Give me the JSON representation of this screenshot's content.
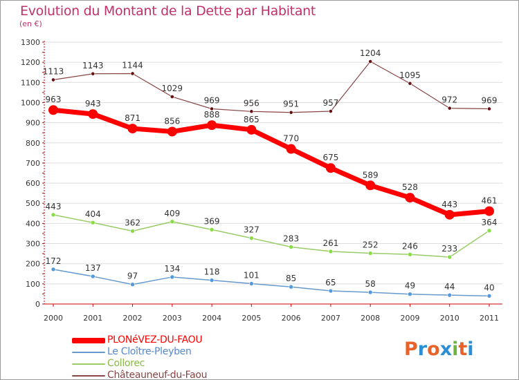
{
  "header": {
    "title": "Evolution du Montant de la Dette par Habitant",
    "subtitle": "(en €)"
  },
  "brand": {
    "text": "Proxiti",
    "letters": [
      "P",
      "r",
      "o",
      "x",
      "i",
      "t",
      "i"
    ],
    "colors": [
      "#e8622a",
      "#2b8fd6",
      "#e8622a",
      "#2b8fd6",
      "#6db33f",
      "#e8622a",
      "#2b8fd6"
    ]
  },
  "colors": {
    "title": "#c1306a",
    "axis": "#cc0000",
    "grid": "#dddddd",
    "label": "#333333"
  },
  "chart_data": {
    "type": "line",
    "title": "Evolution du Montant de la Dette par Habitant",
    "subtitle": "(en €)",
    "x": [
      "2000",
      "2001",
      "2002",
      "2003",
      "2004",
      "2005",
      "2006",
      "2007",
      "2008",
      "2009",
      "2010",
      "2011"
    ],
    "ylim": [
      0,
      1300
    ],
    "yticks": [
      0,
      100,
      200,
      300,
      400,
      500,
      600,
      700,
      800,
      900,
      1000,
      1100,
      1200,
      1300
    ],
    "grid": "horizontal",
    "legend_position": "bottom-left",
    "series": [
      {
        "name": "PLONéVEZ-DU-FAOU",
        "color": "#ff0000",
        "dot": "#ff0000",
        "width": 7,
        "values": [
          963,
          943,
          871,
          856,
          888,
          865,
          770,
          675,
          589,
          528,
          443,
          461
        ]
      },
      {
        "name": "Le Cloître-Pleyben",
        "color": "#6699cc",
        "dot": "#5599dd",
        "width": 1.5,
        "values": [
          172,
          137,
          97,
          134,
          118,
          101,
          85,
          65,
          58,
          49,
          44,
          40
        ]
      },
      {
        "name": "Collorec",
        "color": "#99cc66",
        "dot": "#88dd44",
        "width": 1.5,
        "values": [
          443,
          404,
          362,
          409,
          369,
          327,
          283,
          261,
          252,
          246,
          233,
          364
        ]
      },
      {
        "name": "Châteauneuf-du-Faou",
        "color": "#884444",
        "dot": "#661111",
        "width": 1.2,
        "values": [
          1113,
          1143,
          1144,
          1029,
          969,
          956,
          951,
          957,
          1204,
          1095,
          972,
          969
        ]
      }
    ]
  }
}
